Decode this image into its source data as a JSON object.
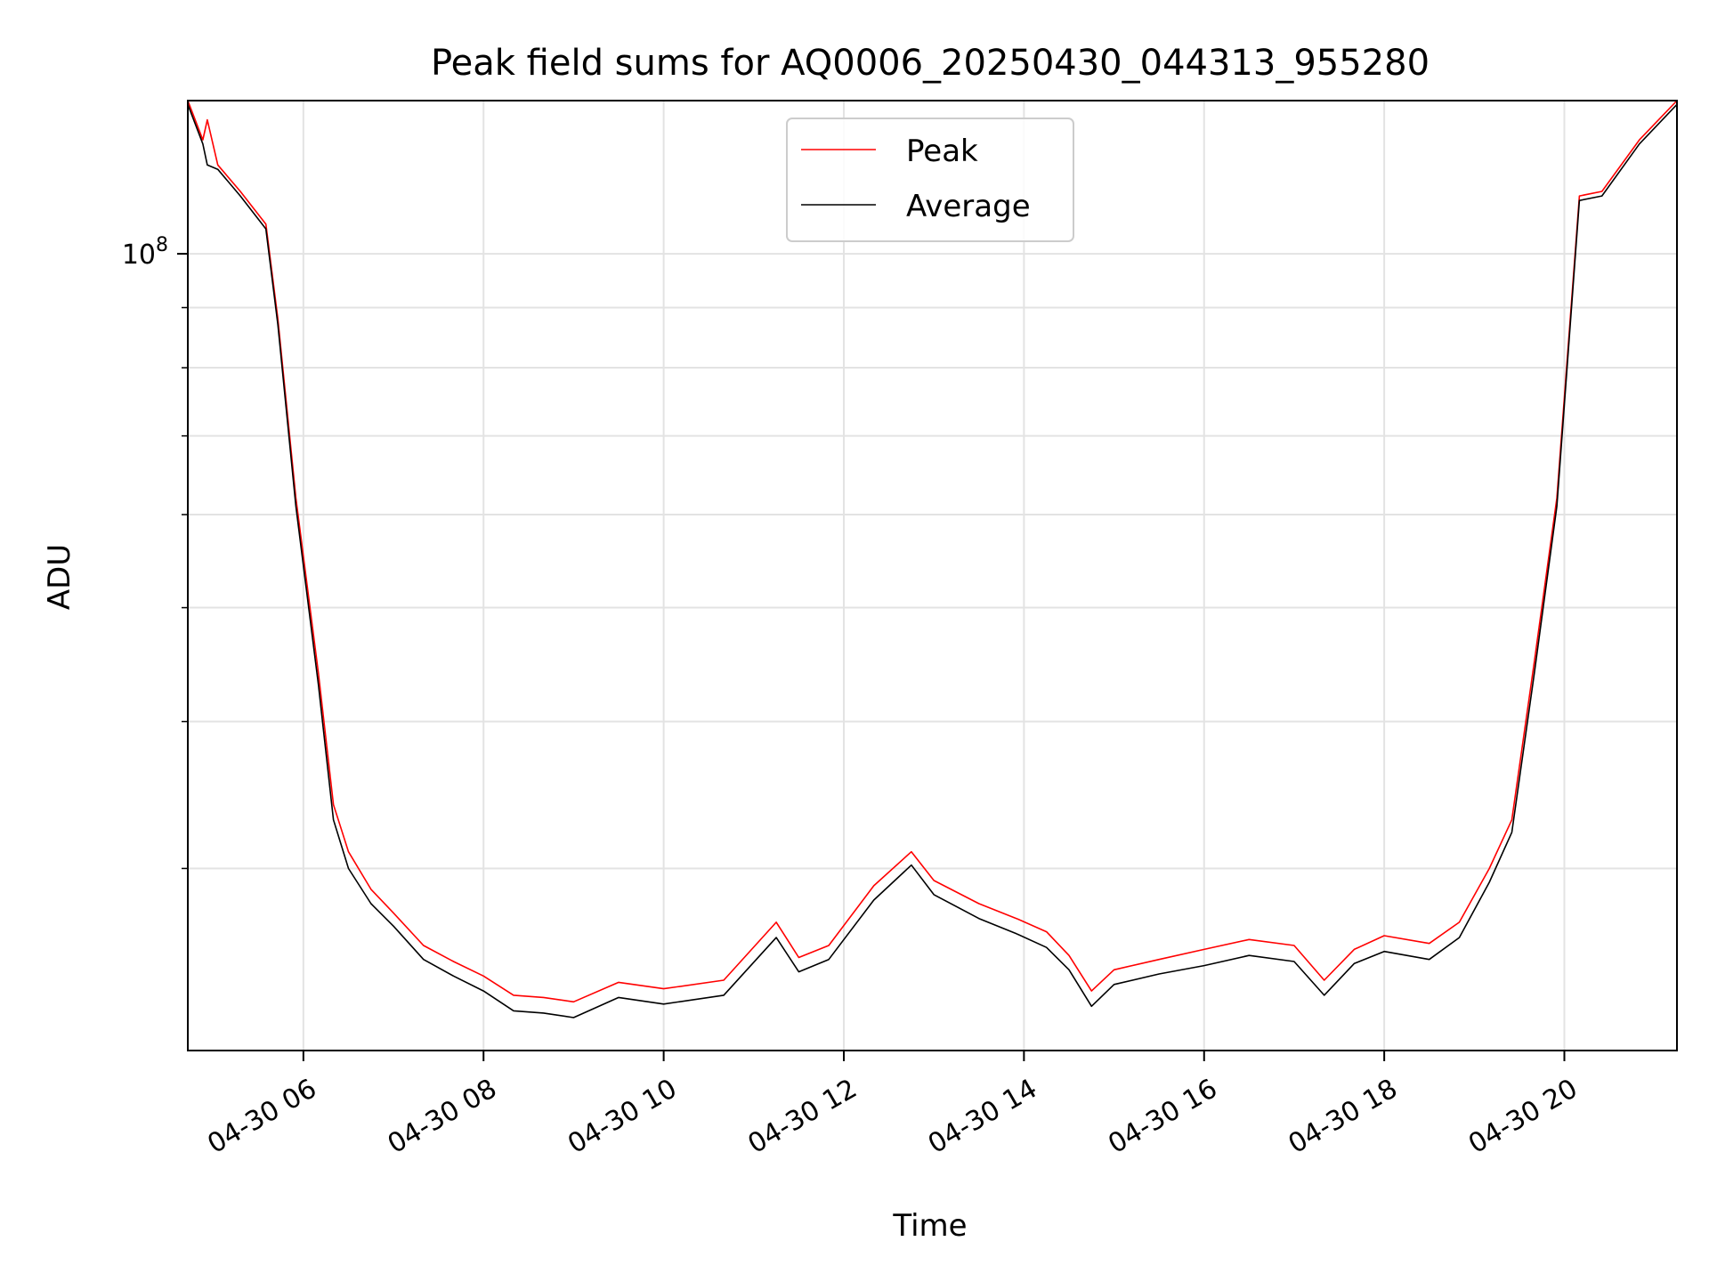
{
  "chart_data": {
    "type": "line",
    "title": "Peak field sums for AQ0006_20250430_044313_955280",
    "xlabel": "Time",
    "ylabel": "ADU",
    "y_scale": "log",
    "grid": true,
    "legend_position": "top-center",
    "x_range": [
      "2025-04-30 04:43",
      "2025-04-30 21:15"
    ],
    "y_range": [
      21000000,
      135000000
    ],
    "x_ticks": [
      "04-30 06",
      "04-30 08",
      "04-30 10",
      "04-30 12",
      "04-30 14",
      "04-30 16",
      "04-30 18",
      "04-30 20"
    ],
    "x_tick_times": [
      "2025-04-30 06:00",
      "2025-04-30 08:00",
      "2025-04-30 10:00",
      "2025-04-30 12:00",
      "2025-04-30 14:00",
      "2025-04-30 16:00",
      "2025-04-30 18:00",
      "2025-04-30 20:00"
    ],
    "y_ticks": [
      {
        "base": "10",
        "exp": "8"
      }
    ],
    "y_tick_values": [
      100000000
    ],
    "y_minor_ticks": [
      30000000,
      40000000,
      50000000,
      60000000,
      70000000,
      80000000,
      90000000
    ],
    "series": [
      {
        "name": "Peak",
        "color": "#ff0000",
        "x": [
          "2025-04-30 04:43",
          "2025-04-30 04:53",
          "2025-04-30 04:56",
          "2025-04-30 05:03",
          "2025-04-30 05:18",
          "2025-04-30 05:35",
          "2025-04-30 05:43",
          "2025-04-30 05:55",
          "2025-04-30 06:10",
          "2025-04-30 06:20",
          "2025-04-30 06:30",
          "2025-04-30 06:45",
          "2025-04-30 07:00",
          "2025-04-30 07:20",
          "2025-04-30 07:40",
          "2025-04-30 08:00",
          "2025-04-30 08:20",
          "2025-04-30 08:40",
          "2025-04-30 09:00",
          "2025-04-30 09:30",
          "2025-04-30 10:00",
          "2025-04-30 10:40",
          "2025-04-30 11:15",
          "2025-04-30 11:30",
          "2025-04-30 11:50",
          "2025-04-30 12:20",
          "2025-04-30 12:45",
          "2025-04-30 13:00",
          "2025-04-30 13:30",
          "2025-04-30 13:55",
          "2025-04-30 14:15",
          "2025-04-30 14:30",
          "2025-04-30 14:45",
          "2025-04-30 15:00",
          "2025-04-30 15:30",
          "2025-04-30 16:00",
          "2025-04-30 16:30",
          "2025-04-30 17:00",
          "2025-04-30 17:20",
          "2025-04-30 17:40",
          "2025-04-30 18:00",
          "2025-04-30 18:30",
          "2025-04-30 18:50",
          "2025-04-30 19:10",
          "2025-04-30 19:25",
          "2025-04-30 19:40",
          "2025-04-30 19:55",
          "2025-04-30 20:10",
          "2025-04-30 20:25",
          "2025-04-30 20:50",
          "2025-04-30 21:15"
        ],
        "values": [
          135000000,
          125000000,
          130000000,
          119000000,
          113000000,
          106000000,
          88000000,
          62000000,
          44000000,
          34000000,
          31000000,
          28800000,
          27500000,
          25800000,
          25000000,
          24300000,
          23400000,
          23300000,
          23100000,
          24000000,
          23700000,
          24100000,
          27000000,
          25200000,
          25800000,
          29000000,
          31000000,
          29300000,
          28000000,
          27200000,
          26500000,
          25300000,
          23600000,
          24600000,
          25100000,
          25600000,
          26100000,
          25800000,
          24100000,
          25600000,
          26300000,
          25900000,
          27000000,
          30000000,
          33000000,
          45000000,
          62000000,
          112000000,
          113000000,
          125000000,
          135000000
        ]
      },
      {
        "name": "Average",
        "color": "#000000",
        "x": [
          "2025-04-30 04:43",
          "2025-04-30 04:53",
          "2025-04-30 04:56",
          "2025-04-30 05:03",
          "2025-04-30 05:18",
          "2025-04-30 05:35",
          "2025-04-30 05:43",
          "2025-04-30 05:55",
          "2025-04-30 06:10",
          "2025-04-30 06:20",
          "2025-04-30 06:30",
          "2025-04-30 06:45",
          "2025-04-30 07:00",
          "2025-04-30 07:20",
          "2025-04-30 07:40",
          "2025-04-30 08:00",
          "2025-04-30 08:20",
          "2025-04-30 08:40",
          "2025-04-30 09:00",
          "2025-04-30 09:30",
          "2025-04-30 10:00",
          "2025-04-30 10:40",
          "2025-04-30 11:15",
          "2025-04-30 11:30",
          "2025-04-30 11:50",
          "2025-04-30 12:20",
          "2025-04-30 12:45",
          "2025-04-30 13:00",
          "2025-04-30 13:30",
          "2025-04-30 13:55",
          "2025-04-30 14:15",
          "2025-04-30 14:30",
          "2025-04-30 14:45",
          "2025-04-30 15:00",
          "2025-04-30 15:30",
          "2025-04-30 16:00",
          "2025-04-30 16:30",
          "2025-04-30 17:00",
          "2025-04-30 17:20",
          "2025-04-30 17:40",
          "2025-04-30 18:00",
          "2025-04-30 18:30",
          "2025-04-30 18:50",
          "2025-04-30 19:10",
          "2025-04-30 19:25",
          "2025-04-30 19:40",
          "2025-04-30 19:55",
          "2025-04-30 20:10",
          "2025-04-30 20:25",
          "2025-04-30 20:50",
          "2025-04-30 21:15"
        ],
        "values": [
          134000000,
          124000000,
          119000000,
          118000000,
          112000000,
          105000000,
          87000000,
          61000000,
          43000000,
          33000000,
          30000000,
          28000000,
          26800000,
          25100000,
          24300000,
          23600000,
          22700000,
          22600000,
          22400000,
          23300000,
          23000000,
          23400000,
          26200000,
          24500000,
          25100000,
          28200000,
          30200000,
          28500000,
          27200000,
          26400000,
          25700000,
          24600000,
          22900000,
          23900000,
          24400000,
          24800000,
          25300000,
          25000000,
          23400000,
          24900000,
          25500000,
          25100000,
          26200000,
          29200000,
          32200000,
          44000000,
          61000000,
          111000000,
          112000000,
          124000000,
          134000000
        ]
      }
    ]
  }
}
